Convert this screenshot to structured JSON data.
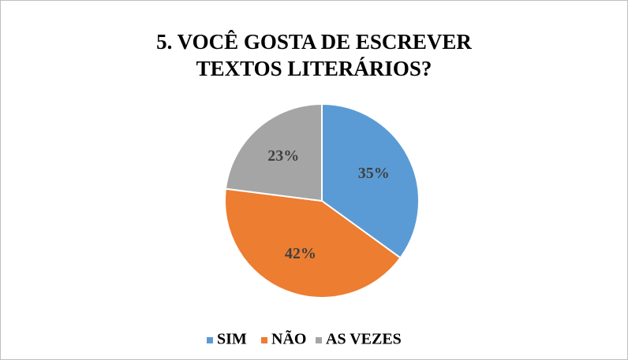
{
  "chart_data": {
    "type": "pie",
    "title": "5. VOCÊ GOSTA DE ESCREVER TEXTOS LITERÁRIOS?",
    "categories": [
      "SIM",
      "NÃO",
      "AS VEZES"
    ],
    "values": [
      35,
      42,
      23
    ],
    "value_labels": [
      "35%",
      "42%",
      "23%"
    ],
    "colors": [
      "#5b9bd5",
      "#ed7d31",
      "#a5a5a5"
    ],
    "legend": "bottom"
  }
}
